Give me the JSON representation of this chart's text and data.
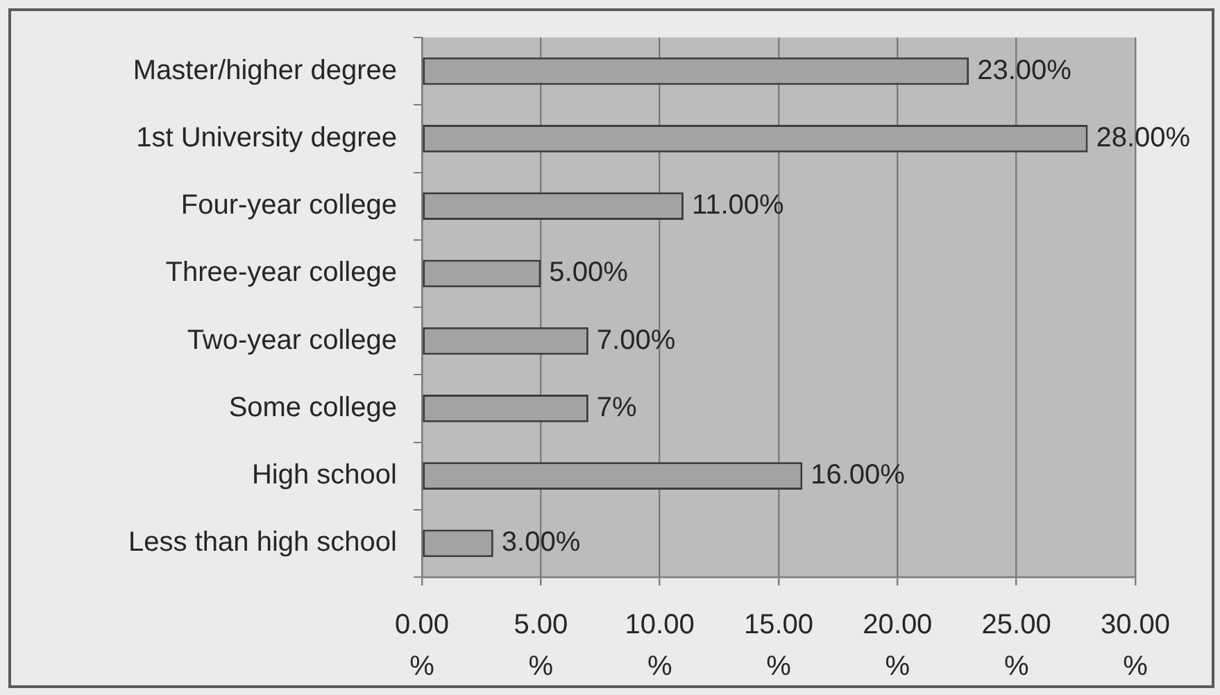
{
  "chart_data": {
    "type": "bar",
    "orientation": "horizontal",
    "categories": [
      "Master/higher degree",
      "1st University degree",
      "Four-year college",
      "Three-year college",
      "Two-year college",
      "Some college",
      "High school",
      "Less than high school"
    ],
    "values": [
      23,
      28,
      11,
      5,
      7,
      7,
      16,
      3
    ],
    "value_labels": [
      "23.00%",
      "28.00%",
      "11.00%",
      "5.00%",
      "7.00%",
      "7%",
      "16.00%",
      "3.00%"
    ],
    "color": "#a3a3a3",
    "xlim": [
      0,
      30
    ],
    "xticks": [
      {
        "value": 0,
        "label": "0.00%"
      },
      {
        "value": 5,
        "label": "5.00%"
      },
      {
        "value": 10,
        "label": "10.00%"
      },
      {
        "value": 15,
        "label": "15.00%"
      },
      {
        "value": 20,
        "label": "20.00%"
      },
      {
        "value": 25,
        "label": "25.00%"
      },
      {
        "value": 30,
        "label": "30.00%"
      }
    ],
    "grid": "x"
  }
}
